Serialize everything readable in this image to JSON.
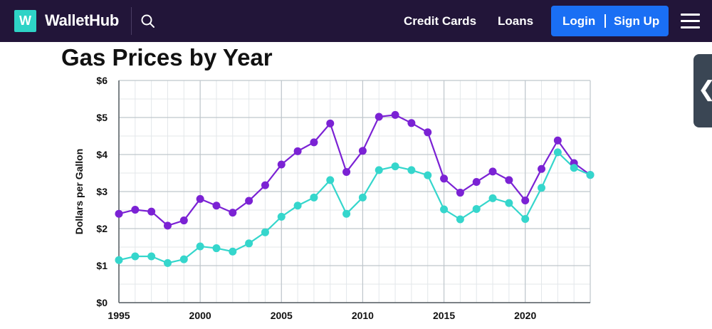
{
  "header": {
    "logo_letter": "W",
    "logo_text": "WalletHub",
    "nav_items": [
      "Credit Cards",
      "Loans"
    ],
    "login_label": "Login",
    "signup_label": "Sign Up",
    "icons": {
      "search": "search-icon",
      "menu": "hamburger-menu-icon",
      "side_tab": "chevron-left-icon"
    },
    "colors": {
      "bar": "#221539",
      "logo": "#2ed3c6",
      "button": "#1a6ff4"
    }
  },
  "side_tab_glyph": "❮",
  "chart_data": {
    "type": "line",
    "title": "Gas Prices by Year",
    "ylabel": "Dollars per Gallon",
    "xlabel": "",
    "ylim": [
      0,
      6
    ],
    "xlim": [
      1995,
      2024
    ],
    "x_ticks": [
      1995,
      2000,
      2005,
      2010,
      2015,
      2020
    ],
    "y_ticks": [
      "$0",
      "$1",
      "$2",
      "$3",
      "$4",
      "$5",
      "$6"
    ],
    "grid": true,
    "x": [
      1995,
      1996,
      1997,
      1998,
      1999,
      2000,
      2001,
      2002,
      2003,
      2004,
      2005,
      2006,
      2007,
      2008,
      2009,
      2010,
      2011,
      2012,
      2013,
      2014,
      2015,
      2016,
      2017,
      2018,
      2019,
      2020,
      2021,
      2022,
      2023,
      2024
    ],
    "series": [
      {
        "color": "#7b22d4",
        "values": [
          2.4,
          2.51,
          2.46,
          2.08,
          2.22,
          2.8,
          2.62,
          2.43,
          2.75,
          3.17,
          3.73,
          4.09,
          4.33,
          4.84,
          3.53,
          4.1,
          5.02,
          5.07,
          4.85,
          4.6,
          3.35,
          2.97,
          3.26,
          3.54,
          3.31,
          2.76,
          3.61,
          4.38,
          3.77,
          3.45
        ]
      },
      {
        "color": "#35d6cc",
        "values": [
          1.15,
          1.25,
          1.25,
          1.07,
          1.17,
          1.52,
          1.47,
          1.38,
          1.6,
          1.9,
          2.32,
          2.62,
          2.84,
          3.31,
          2.4,
          2.84,
          3.58,
          3.68,
          3.58,
          3.44,
          2.52,
          2.25,
          2.53,
          2.82,
          2.69,
          2.26,
          3.1,
          4.06,
          3.64,
          3.45
        ]
      }
    ]
  }
}
